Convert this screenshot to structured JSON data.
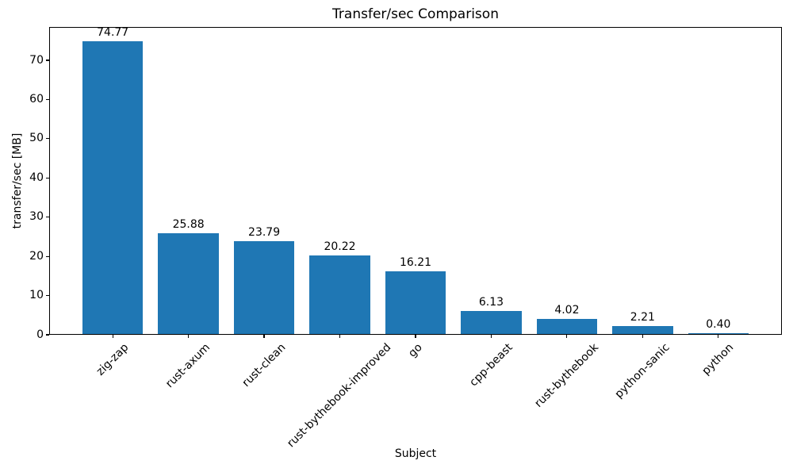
{
  "chart_data": {
    "type": "bar",
    "title": "Transfer/sec Comparison",
    "xlabel": "Subject",
    "ylabel": "transfer/sec [MB]",
    "categories": [
      "zig-zap",
      "rust-axum",
      "rust-clean",
      "rust-bythebook-improved",
      "go",
      "cpp-beast",
      "rust-bythebook",
      "python-sanic",
      "python"
    ],
    "values": [
      74.77,
      25.88,
      23.79,
      20.22,
      16.21,
      6.13,
      4.02,
      2.21,
      0.4
    ],
    "bar_value_labels": [
      "74.77",
      "25.88",
      "23.79",
      "20.22",
      "16.21",
      "6.13",
      "4.02",
      "2.21",
      "0.40"
    ],
    "yticks": [
      "0",
      "10",
      "20",
      "30",
      "40",
      "50",
      "60",
      "70"
    ],
    "ylim": [
      0,
      78.5
    ],
    "bar_color": "#1f77b4",
    "axis_color": "#000000",
    "text_color": "#000000",
    "grid": false,
    "legend_position": "none",
    "xtick_rotation_deg": 45
  }
}
